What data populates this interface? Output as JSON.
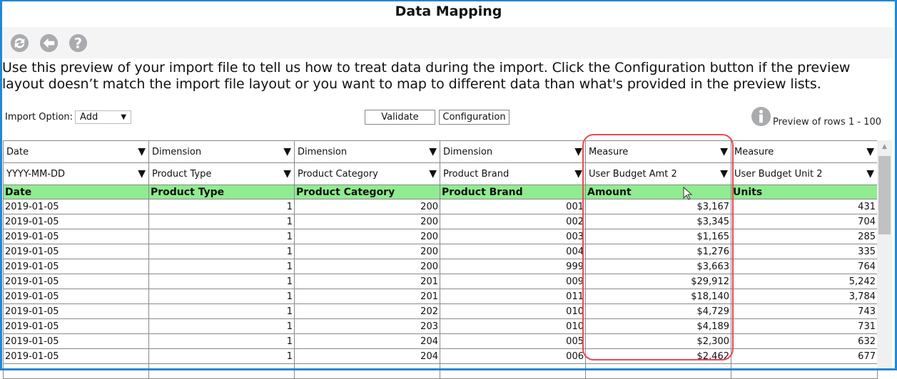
{
  "title": "Data Mapping",
  "toolbar": {
    "icons": [
      "refresh-icon",
      "back-icon",
      "help-icon"
    ]
  },
  "intro": "Use this preview of your import file to tell us how to treat data during the import. Click the Configuration button if the preview layout doesn’t match the import file layout or you want to map to different data than what's provided in the preview lists.",
  "import_option": {
    "label": "Import Option:",
    "value": "Add"
  },
  "buttons": {
    "validate": "Validate",
    "configuration": "Configuration"
  },
  "preview_text": "Preview of rows 1 - 100",
  "colors": {
    "header_green": "#90ec90",
    "highlight": "#f0484e",
    "frame": "#1e88d8"
  },
  "columns": [
    {
      "type": "Date",
      "mapping": "YYYY-MM-DD",
      "header": "Date"
    },
    {
      "type": "Dimension",
      "mapping": "Product Type",
      "header": "Product Type"
    },
    {
      "type": "Dimension",
      "mapping": "Product Category",
      "header": "Product Category"
    },
    {
      "type": "Dimension",
      "mapping": "Product Brand",
      "header": "Product Brand"
    },
    {
      "type": "Measure",
      "mapping": "User Budget Amt 2",
      "header": "Amount"
    },
    {
      "type": "Measure",
      "mapping": "User Budget Unit 2",
      "header": "Units"
    }
  ],
  "rows": [
    [
      "2019-01-05",
      "1",
      "200",
      "001",
      "$3,167",
      "431"
    ],
    [
      "2019-01-05",
      "1",
      "200",
      "002",
      "$3,345",
      "704"
    ],
    [
      "2019-01-05",
      "1",
      "200",
      "003",
      "$1,165",
      "285"
    ],
    [
      "2019-01-05",
      "1",
      "200",
      "004",
      "$1,276",
      "335"
    ],
    [
      "2019-01-05",
      "1",
      "200",
      "999",
      "$3,663",
      "764"
    ],
    [
      "2019-01-05",
      "1",
      "201",
      "009",
      "$29,912",
      "5,242"
    ],
    [
      "2019-01-05",
      "1",
      "201",
      "011",
      "$18,140",
      "3,784"
    ],
    [
      "2019-01-05",
      "1",
      "202",
      "010",
      "$4,729",
      "743"
    ],
    [
      "2019-01-05",
      "1",
      "203",
      "010",
      "$4,189",
      "731"
    ],
    [
      "2019-01-05",
      "1",
      "204",
      "005",
      "$2,300",
      "632"
    ],
    [
      "2019-01-05",
      "1",
      "204",
      "006",
      "$2,462",
      "677"
    ],
    [
      "",
      "",
      "",
      "",
      "",
      ""
    ]
  ]
}
